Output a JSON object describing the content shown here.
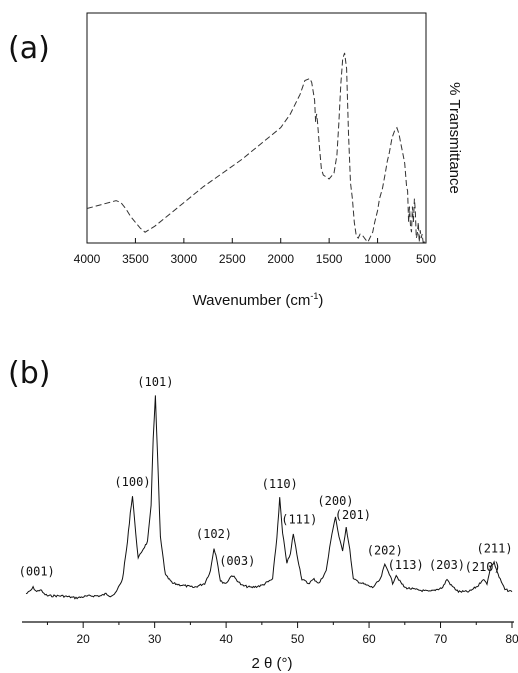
{
  "chart_data": [
    {
      "type": "line",
      "panel_label": "(a)",
      "xlabel": "Wavenumber (cm",
      "xlabel_superscript": "-1",
      "xlabel_suffix": ")",
      "ylabel": "% Transmittance",
      "xlim": [
        4000,
        500
      ],
      "x_reversed": true,
      "ylim": [
        0,
        100
      ],
      "y_ticks_shown": false,
      "grid": false,
      "line_style": "dashed",
      "x_tick_labels": [
        "4000",
        "3500",
        "3000",
        "2500",
        "2000",
        "1500",
        "1000",
        "500"
      ],
      "x_ticks": [
        4000,
        3500,
        3000,
        2500,
        2000,
        1500,
        1000,
        500
      ],
      "series": [
        {
          "x": [
            4000,
            3850,
            3700,
            3650,
            3600,
            3550,
            3500,
            3450,
            3400,
            3300,
            3200,
            3000,
            2800,
            2600,
            2400,
            2200,
            2000,
            1900,
            1800,
            1750,
            1700,
            1680,
            1650,
            1640,
            1630,
            1620,
            1600,
            1580,
            1560,
            1500,
            1450,
            1420,
            1400,
            1380,
            1360,
            1340,
            1320,
            1300,
            1280,
            1260,
            1240,
            1220,
            1200,
            1180,
            1150,
            1120,
            1100,
            1080,
            1050,
            1030,
            1000,
            980,
            950,
            920,
            900,
            880,
            850,
            820,
            800,
            780,
            760,
            740,
            720,
            700,
            690,
            680,
            670,
            660,
            650,
            640,
            630,
            620,
            610,
            600,
            590,
            580,
            570,
            560,
            550,
            540,
            530,
            520,
            500
          ],
          "y": [
            17,
            19,
            21,
            20,
            17,
            13,
            10,
            7,
            5,
            8,
            12,
            20,
            28,
            35,
            42,
            50,
            58,
            65,
            75,
            82,
            83,
            81,
            72,
            61,
            65,
            61,
            48,
            37,
            34,
            32,
            35,
            44,
            60,
            80,
            93,
            96,
            88,
            55,
            30,
            22,
            10,
            3,
            2,
            4,
            3,
            1,
            0,
            2,
            5,
            10,
            16,
            22,
            27,
            35,
            41,
            45,
            53,
            57,
            58,
            55,
            50,
            45,
            40,
            28,
            26,
            10,
            18,
            8,
            5,
            18,
            10,
            22,
            16,
            2,
            4,
            10,
            0,
            6,
            2,
            4,
            0,
            0,
            0
          ]
        }
      ]
    },
    {
      "type": "line",
      "panel_label": "(b)",
      "xlabel": "2 θ (°)",
      "ylabel": "",
      "xlim": [
        12,
        80
      ],
      "ylim": [
        0,
        100
      ],
      "y_ticks_shown": false,
      "grid": false,
      "x_tick_labels": [
        "20",
        "30",
        "40",
        "50",
        "60",
        "70",
        "80"
      ],
      "x_ticks": [
        20,
        30,
        40,
        50,
        60,
        70,
        80
      ],
      "series": [
        {
          "x": [
            12.0,
            12.5,
            13.0,
            13.5,
            14.0,
            14.5,
            15,
            17,
            19,
            21,
            22.5,
            23.2,
            23.8,
            24.5,
            25.5,
            26.2,
            26.6,
            26.9,
            27.2,
            27.7,
            28.3,
            29.0,
            29.5,
            29.8,
            30.1,
            30.4,
            30.8,
            31.5,
            32.5,
            34.0,
            35.5,
            37.0,
            37.8,
            38.3,
            38.7,
            39.2,
            40.0,
            40.8,
            41.4,
            42.2,
            43.5,
            45.0,
            46.5,
            47.1,
            47.5,
            47.9,
            48.5,
            49.0,
            49.4,
            49.9,
            50.6,
            51.5,
            52.3,
            53.0,
            54.0,
            54.8,
            55.3,
            55.8,
            56.3,
            56.8,
            57.3,
            57.8,
            59.0,
            60.5,
            61.6,
            62.2,
            62.7,
            63.3,
            63.8,
            64.3,
            65.0,
            66.5,
            68.5,
            70.3,
            70.9,
            71.5,
            72.5,
            74.0,
            75.3,
            75.9,
            76.5,
            77.0,
            77.5,
            78.2,
            79.0,
            80.0
          ],
          "y": [
            3,
            4,
            6,
            4,
            5,
            3,
            2,
            2,
            1,
            2,
            2,
            3,
            2,
            3,
            10,
            28,
            42,
            50,
            38,
            20,
            24,
            28,
            45,
            78,
            98,
            70,
            30,
            12,
            8,
            7,
            6,
            8,
            14,
            25,
            20,
            9,
            8,
            12,
            10,
            7,
            6,
            7,
            10,
            30,
            49,
            32,
            18,
            22,
            32,
            22,
            10,
            8,
            10,
            8,
            14,
            32,
            40,
            30,
            24,
            35,
            24,
            10,
            8,
            6,
            10,
            17,
            14,
            8,
            12,
            9,
            6,
            5,
            4,
            6,
            10,
            7,
            4,
            4,
            7,
            10,
            8,
            16,
            18,
            11,
            5,
            4
          ]
        }
      ],
      "annotations": [
        {
          "label": "(001)",
          "x": 13.5,
          "y": 6
        },
        {
          "label": "(100)",
          "x": 26.9,
          "y": 50
        },
        {
          "label": "(101)",
          "x": 30.1,
          "y": 98
        },
        {
          "label": "(102)",
          "x": 38.3,
          "y": 25
        },
        {
          "label": "(003)",
          "x": 41.0,
          "y": 12
        },
        {
          "label": "(110)",
          "x": 47.5,
          "y": 49
        },
        {
          "label": "(111)",
          "x": 49.4,
          "y": 32
        },
        {
          "label": "(200)",
          "x": 55.3,
          "y": 40
        },
        {
          "label": "(201)",
          "x": 56.9,
          "y": 35
        },
        {
          "label": "(202)",
          "x": 62.2,
          "y": 17
        },
        {
          "label": "(113)",
          "x": 64.0,
          "y": 12
        },
        {
          "label": "(203)",
          "x": 70.9,
          "y": 10
        },
        {
          "label": "(210)",
          "x": 75.9,
          "y": 10
        },
        {
          "label": "(211)",
          "x": 77.0,
          "y": 18
        }
      ]
    }
  ]
}
